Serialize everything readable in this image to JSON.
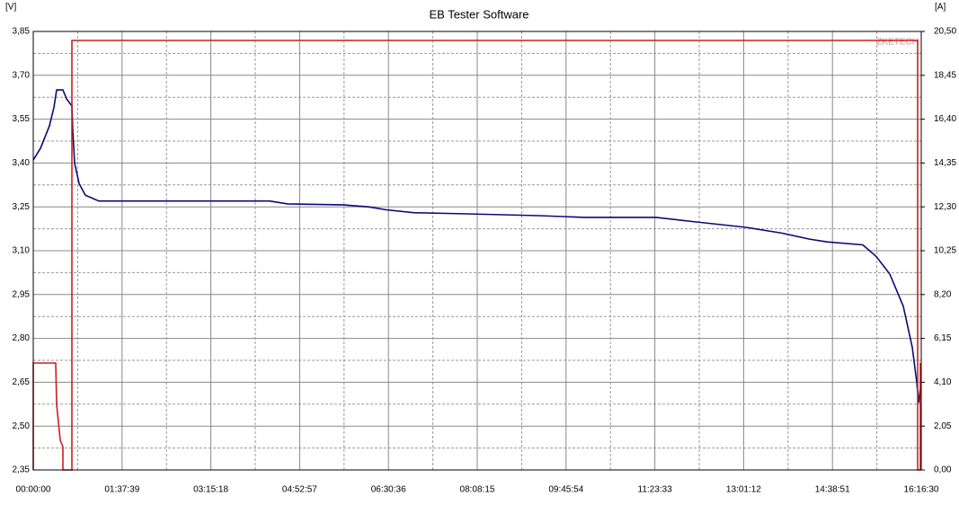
{
  "chart_data": {
    "type": "line",
    "title": "EB Tester Software",
    "y_label": "[V]",
    "y2_label": "[A]",
    "watermark": "ZKETECH",
    "xlim": [
      0,
      58590
    ],
    "ylim": [
      2.35,
      3.85
    ],
    "y2lim": [
      0,
      20.5
    ],
    "grid": true,
    "xticks": [
      {
        "value": 0,
        "label": "00:00:00"
      },
      {
        "value": 5859,
        "label": "01:37:39"
      },
      {
        "value": 11718,
        "label": "03:15:18"
      },
      {
        "value": 17577,
        "label": "04:52:57"
      },
      {
        "value": 23436,
        "label": "06:30:36"
      },
      {
        "value": 29295,
        "label": "08:08:15"
      },
      {
        "value": 35154,
        "label": "09:45:54"
      },
      {
        "value": 41013,
        "label": "11:23:33"
      },
      {
        "value": 46872,
        "label": "13:01:12"
      },
      {
        "value": 52731,
        "label": "14:38:51"
      },
      {
        "value": 58590,
        "label": "16:16:30"
      }
    ],
    "yticks": [
      {
        "value": 2.35,
        "label": "2,35"
      },
      {
        "value": 2.5,
        "label": "2,50"
      },
      {
        "value": 2.65,
        "label": "2,65"
      },
      {
        "value": 2.8,
        "label": "2,80"
      },
      {
        "value": 2.95,
        "label": "2,95"
      },
      {
        "value": 3.1,
        "label": "3,10"
      },
      {
        "value": 3.25,
        "label": "3,25"
      },
      {
        "value": 3.4,
        "label": "3,40"
      },
      {
        "value": 3.55,
        "label": "3,55"
      },
      {
        "value": 3.7,
        "label": "3,70"
      },
      {
        "value": 3.85,
        "label": "3,85"
      }
    ],
    "y2ticks": [
      {
        "value": 0,
        "label": "0,00"
      },
      {
        "value": 2.05,
        "label": "2,05"
      },
      {
        "value": 4.1,
        "label": "4,10"
      },
      {
        "value": 6.15,
        "label": "6,15"
      },
      {
        "value": 8.2,
        "label": "8,20"
      },
      {
        "value": 10.25,
        "label": "10,25"
      },
      {
        "value": 12.3,
        "label": "12,30"
      },
      {
        "value": 14.35,
        "label": "14,35"
      },
      {
        "value": 16.4,
        "label": "16,40"
      },
      {
        "value": 18.45,
        "label": "18,45"
      },
      {
        "value": 20.5,
        "label": "20,50"
      }
    ],
    "series": [
      {
        "color": "#0a0a78",
        "x": [
          0,
          474,
          1067,
          1364,
          1542,
          1957,
          2194,
          2550,
          2609,
          2728,
          3024,
          3440,
          4329,
          15596,
          16782,
          20340,
          22119,
          23305,
          25084,
          28642,
          33386,
          36351,
          41095,
          43467,
          47025,
          49421,
          51177,
          52363,
          54735,
          55624,
          56514,
          57403,
          57996,
          58293,
          58412,
          58530
        ],
        "values": [
          3.41,
          3.45,
          3.527,
          3.59,
          3.65,
          3.65,
          3.62,
          3.595,
          3.51,
          3.4,
          3.33,
          3.29,
          3.27,
          3.27,
          3.26,
          3.257,
          3.25,
          3.24,
          3.23,
          3.226,
          3.22,
          3.214,
          3.214,
          3.2,
          3.18,
          3.16,
          3.14,
          3.13,
          3.12,
          3.08,
          3.02,
          2.91,
          2.77,
          2.65,
          2.58,
          2.63
        ]
      },
      {
        "color": "#cc1f1f",
        "axis": "y2",
        "x": [
          0,
          0,
          1483,
          1542,
          1779,
          1957,
          1957,
          2550,
          2550,
          58352,
          58352,
          58530,
          58530
        ],
        "values": [
          0,
          5.0,
          5.0,
          3.07,
          1.39,
          1.09,
          0,
          0,
          20.08,
          20.08,
          0,
          0,
          5.0
        ]
      }
    ]
  }
}
